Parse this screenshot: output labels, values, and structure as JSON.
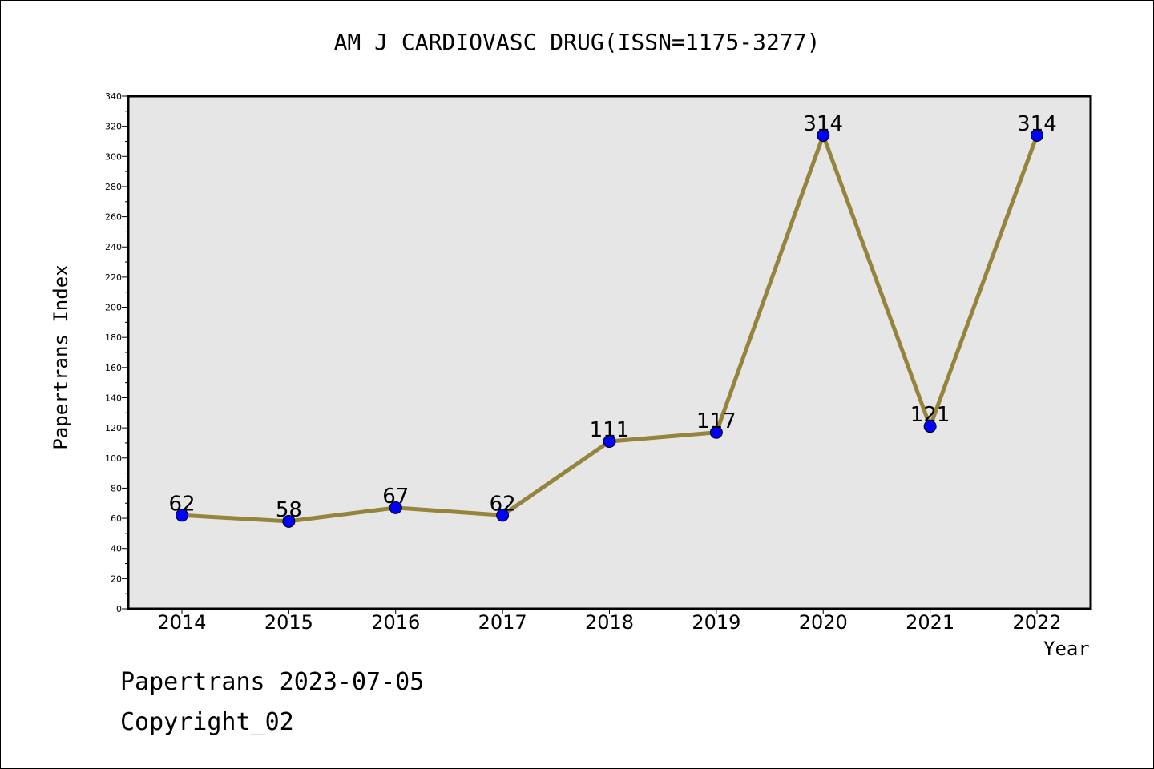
{
  "chart_data": {
    "type": "line",
    "title": "AM J CARDIOVASC DRUG(ISSN=1175-3277)",
    "xlabel": "Year",
    "ylabel": "Papertrans Index",
    "categories": [
      "2014",
      "2015",
      "2016",
      "2017",
      "2018",
      "2019",
      "2020",
      "2021",
      "2022"
    ],
    "values": [
      62,
      58,
      67,
      62,
      111,
      117,
      314,
      121,
      314
    ],
    "ylim": [
      0,
      340
    ],
    "yticks": [
      0,
      20,
      40,
      60,
      80,
      100,
      120,
      140,
      160,
      180,
      200,
      220,
      240,
      260,
      280,
      300,
      320,
      340
    ],
    "grid": false,
    "legend": "none",
    "colors": {
      "line": "#94843c",
      "marker": "#0000ff",
      "plot_background": "#e6e6e6"
    }
  },
  "footer": {
    "date_line": "Papertrans 2023-07-05",
    "copyright_line": "Copyright_02"
  }
}
